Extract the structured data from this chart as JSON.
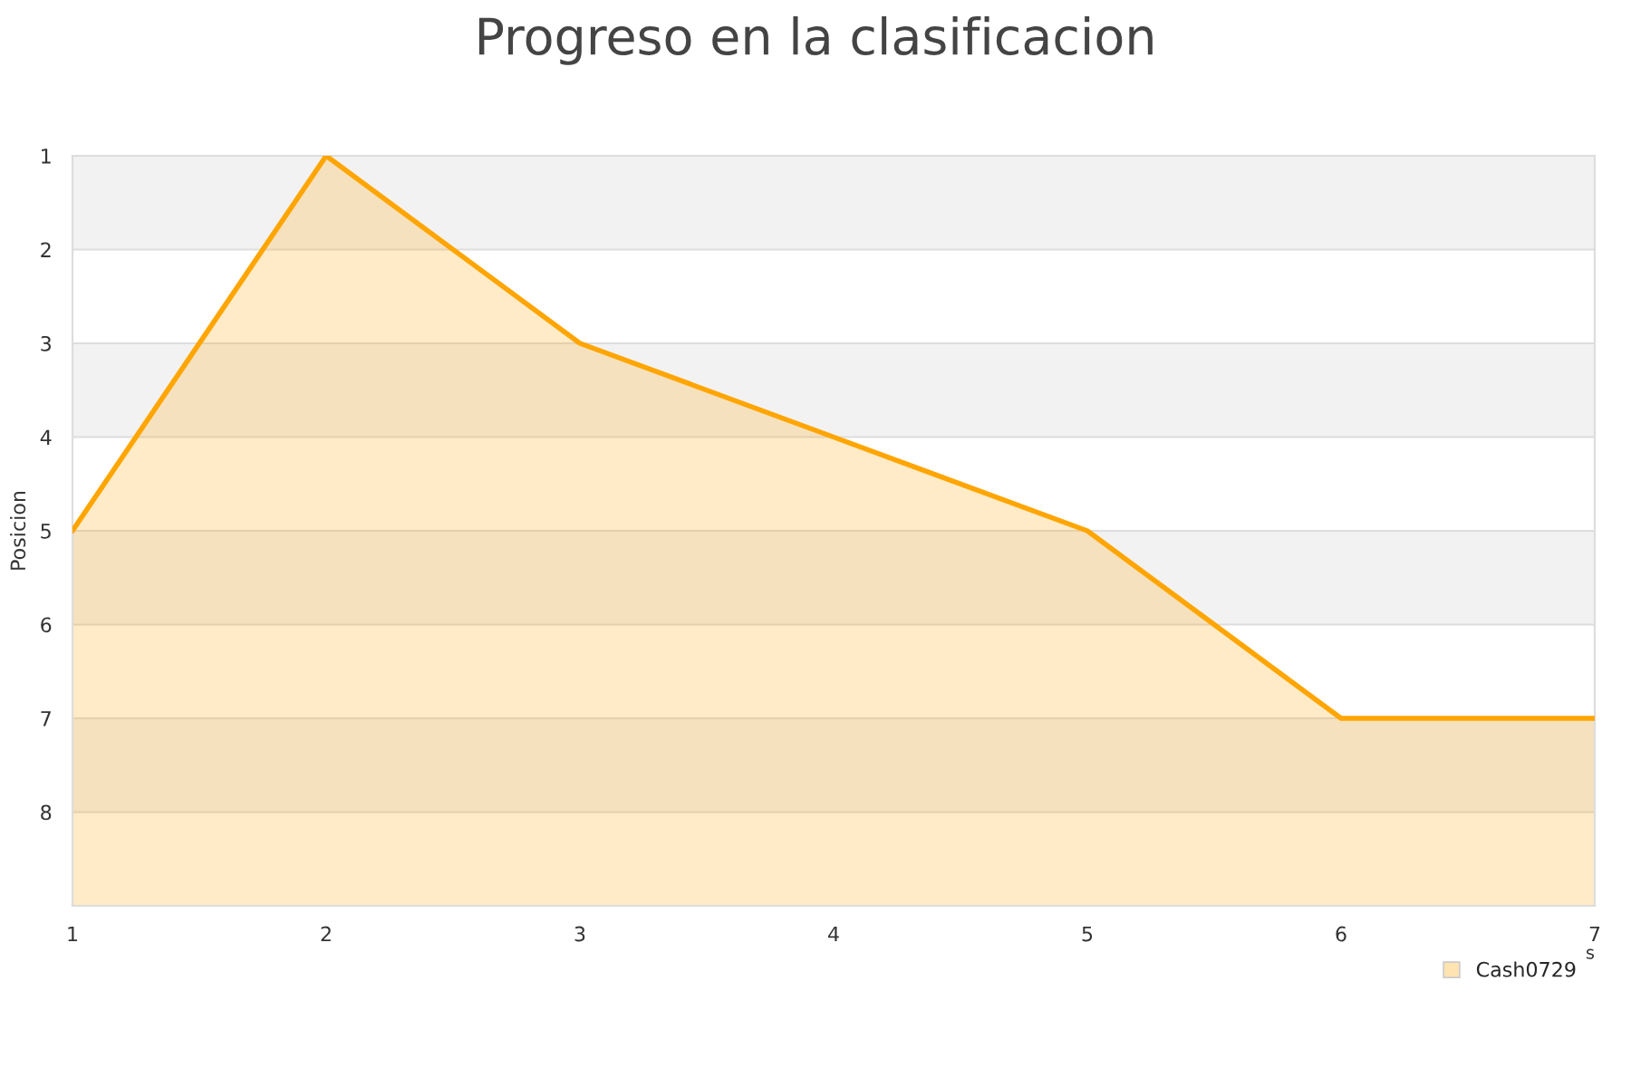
{
  "chart_data": {
    "type": "area",
    "title": "Progreso en la clasificacion",
    "ylabel": "Posicion",
    "xlabel": "s",
    "x": [
      1,
      2,
      3,
      4,
      5,
      6,
      7
    ],
    "series": [
      {
        "name": "Cash0729",
        "color": "#ffa500",
        "values": [
          5,
          1,
          3,
          4,
          5,
          7,
          7
        ]
      }
    ],
    "xlim": [
      1,
      7
    ],
    "xticks": [
      1,
      2,
      3,
      4,
      5,
      6,
      7
    ],
    "ylim": [
      9,
      1
    ],
    "yticks": [
      1,
      2,
      3,
      4,
      5,
      6,
      7,
      8
    ],
    "bands": [
      {
        "axis": "y",
        "from": 1,
        "to": 2,
        "color": "#f2f2f2"
      },
      {
        "axis": "y",
        "from": 3,
        "to": 4,
        "color": "#f2f2f2"
      },
      {
        "axis": "y",
        "from": 5,
        "to": 6,
        "color": "#f2f2f2"
      },
      {
        "axis": "y",
        "from": 7,
        "to": 8,
        "color": "#f2f2f2"
      }
    ],
    "grid": "y",
    "legend": "bottom right"
  }
}
